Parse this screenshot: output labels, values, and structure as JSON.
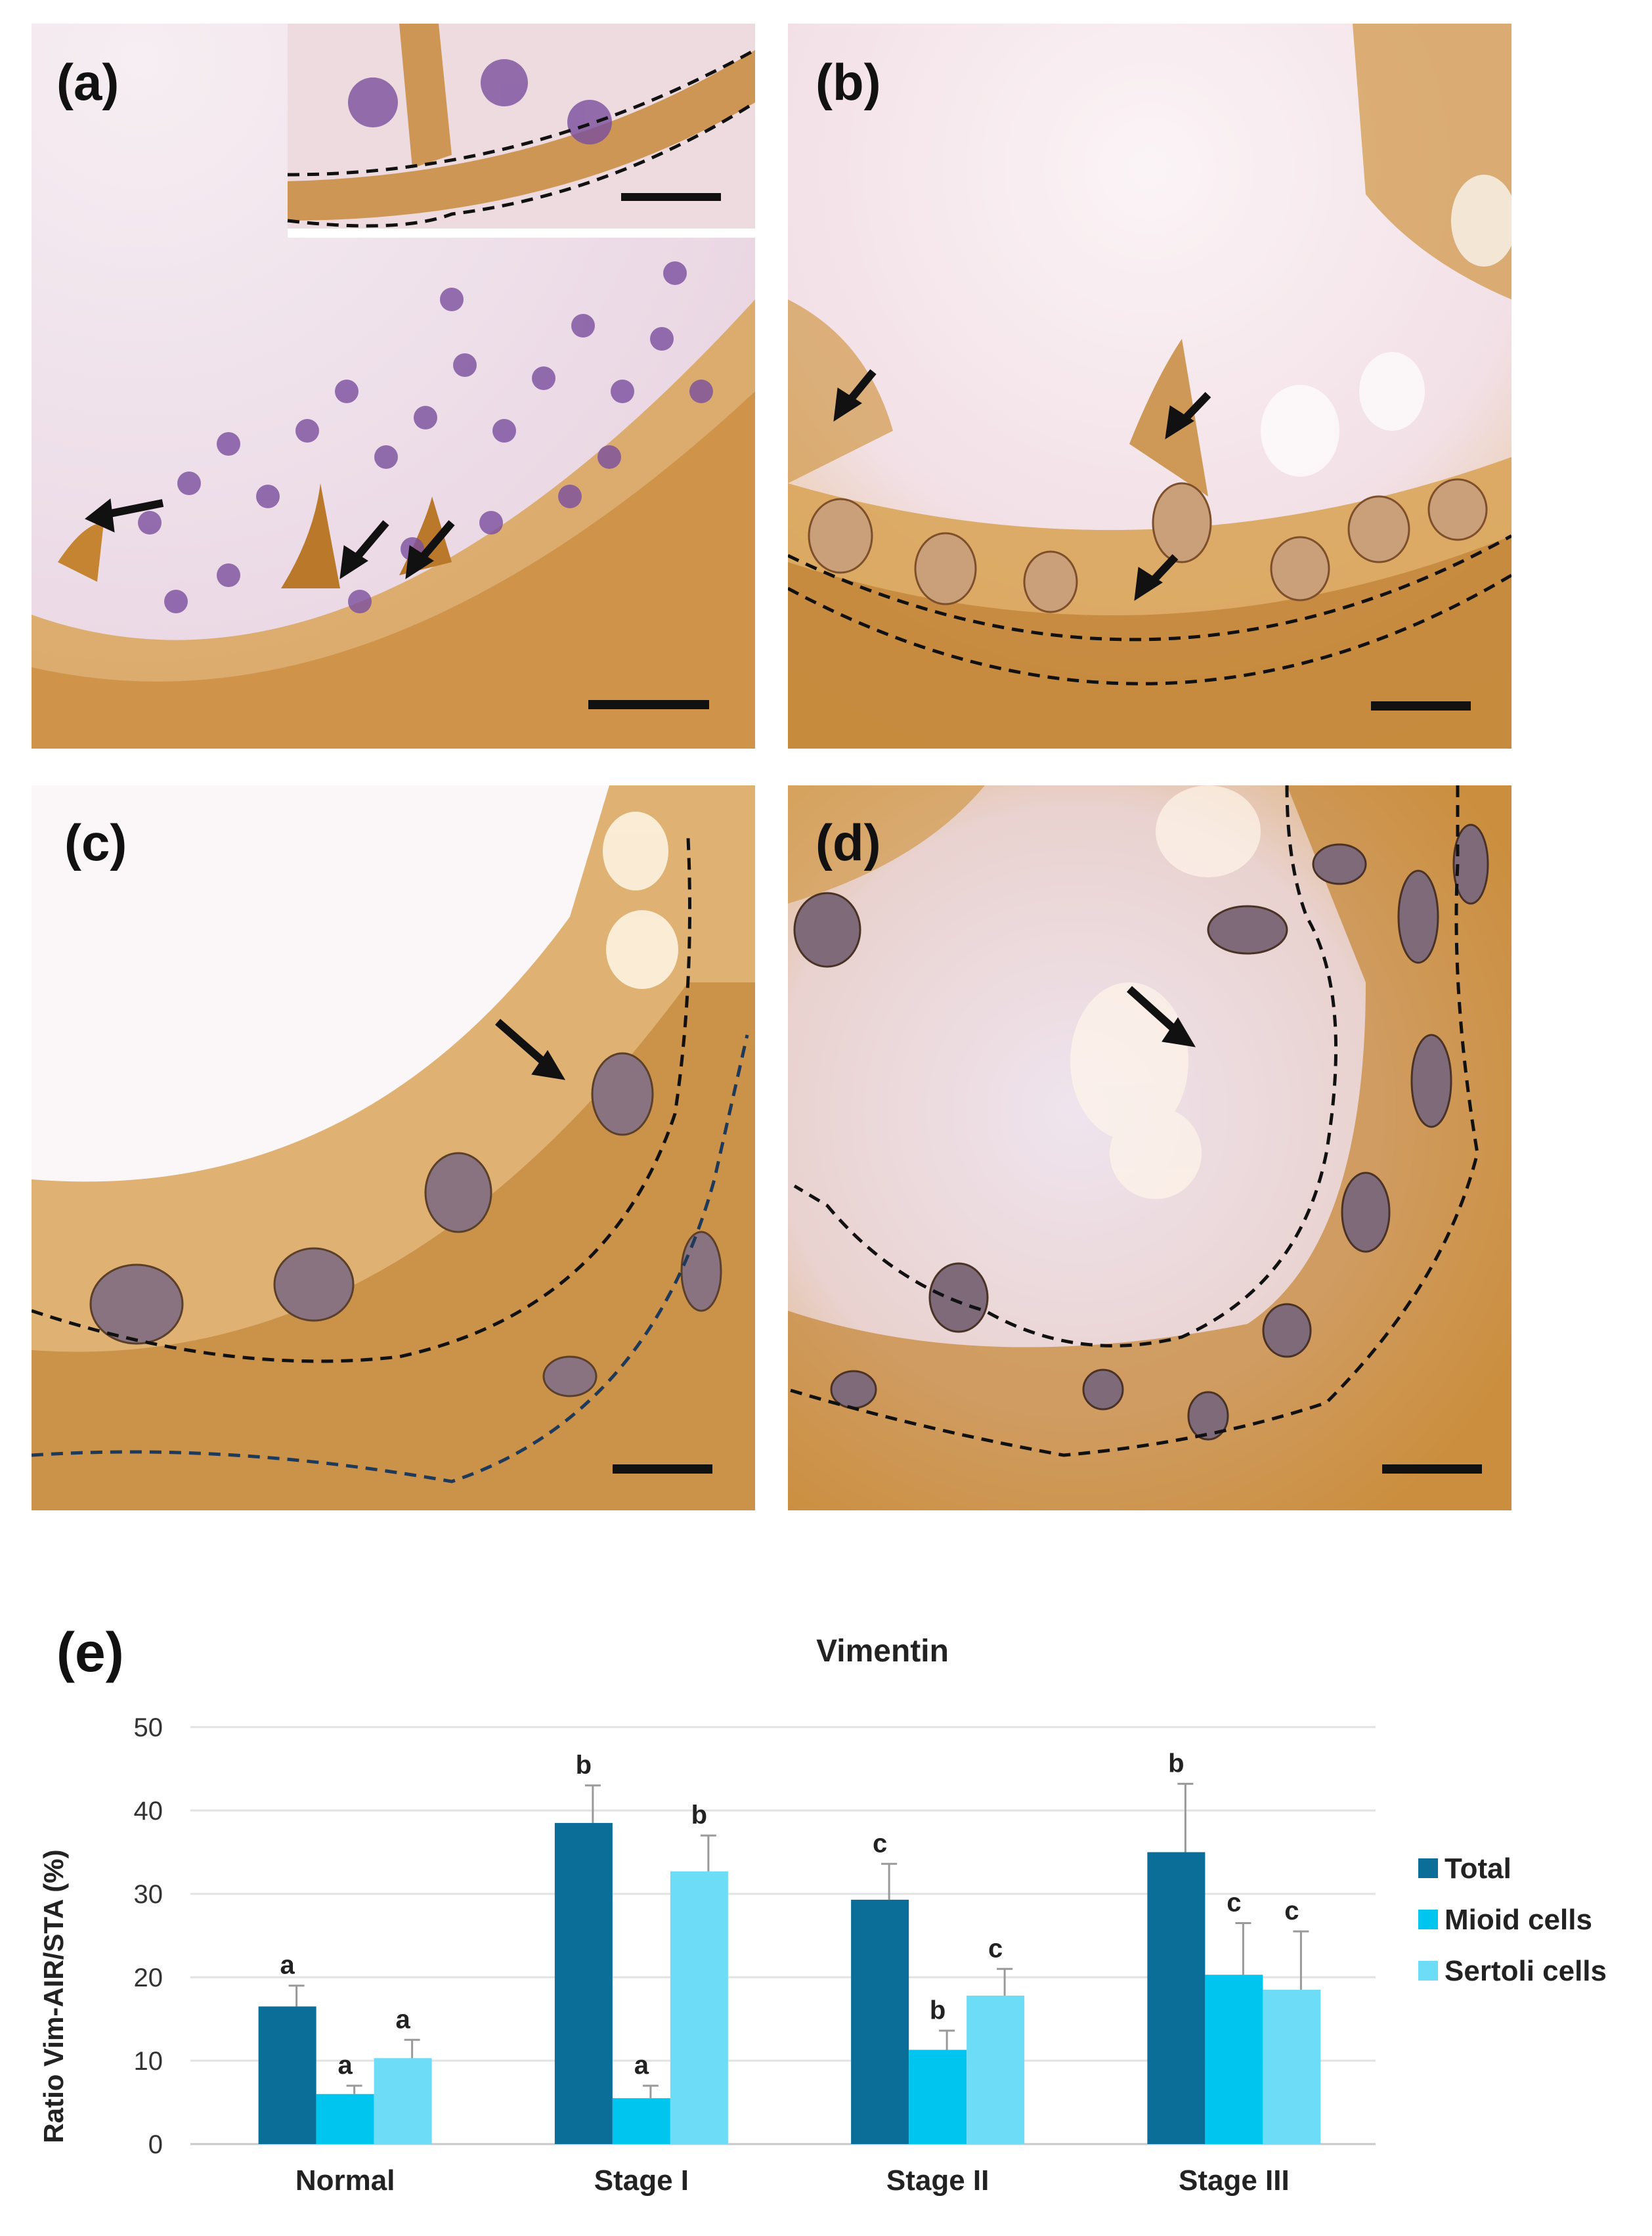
{
  "panels": [
    {
      "label": "(a)"
    },
    {
      "label": "(b)"
    },
    {
      "label": "(c)"
    },
    {
      "label": "(d)"
    }
  ],
  "chart_panel_label": "(e)",
  "colors": {
    "stain_brown": "#b9782a",
    "nucleus_purple": "#5a2f7a",
    "background_pink": "#f3e3ea",
    "arrow": "#111111"
  },
  "chart_data": {
    "type": "bar",
    "title": "Vimentin",
    "xlabel": "",
    "ylabel": "Ratio Vim-AIR/STA (%)",
    "ylim": [
      0,
      50
    ],
    "yticks": [
      0,
      10,
      20,
      30,
      40,
      50
    ],
    "grid": true,
    "legend_position": "right",
    "categories": [
      "Normal",
      "Stage I",
      "Stage II",
      "Stage III"
    ],
    "series": [
      {
        "name": "Total",
        "color": "#0b6e99",
        "values": [
          16.5,
          38.5,
          29.3,
          35.0
        ],
        "errors": [
          2.5,
          4.5,
          4.3,
          8.2
        ],
        "letters": [
          "a",
          "b",
          "c",
          "b"
        ]
      },
      {
        "name": "Mioid cells",
        "color": "#00c6ef",
        "values": [
          6.0,
          5.5,
          11.3,
          20.3
        ],
        "errors": [
          1.0,
          1.5,
          2.3,
          6.2
        ],
        "letters": [
          "a",
          "a",
          "b",
          "c"
        ]
      },
      {
        "name": "Sertoli cells",
        "color": "#6ddcf7",
        "values": [
          10.3,
          32.7,
          17.8,
          18.5
        ],
        "errors": [
          2.2,
          4.3,
          3.2,
          7.0
        ],
        "letters": [
          "a",
          "b",
          "c",
          "c"
        ]
      }
    ]
  }
}
